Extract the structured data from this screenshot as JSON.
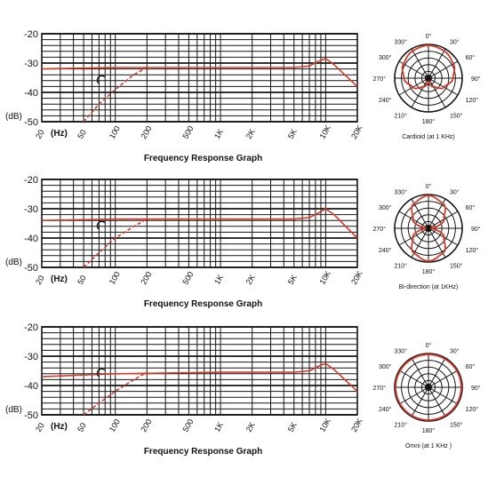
{
  "colors": {
    "grid": "#141414",
    "curve": "#d23a2a",
    "background": "#ffffff"
  },
  "chart_data": [
    {
      "type": "line",
      "panel": "frequency-response",
      "title": "Frequency Response Graph",
      "xlabel": "(Hz)",
      "ylabel": "(dB)",
      "x_scale": "log",
      "xlim": [
        20,
        20000
      ],
      "ylim": [
        -50,
        -20
      ],
      "y_ticks": [
        -20,
        -30,
        -40,
        -50
      ],
      "x_tick_labels": [
        "20",
        "50",
        "100",
        "200",
        "500",
        "1K",
        "2K",
        "5K",
        "10K",
        "20K"
      ],
      "x_tick_values": [
        20,
        50,
        100,
        200,
        500,
        1000,
        2000,
        5000,
        10000,
        20000
      ],
      "series": [
        {
          "style": "solid",
          "x": [
            20,
            100,
            1000,
            5000,
            7000,
            9000,
            10000,
            12000,
            20000
          ],
          "y": [
            -32,
            -31.5,
            -31.5,
            -31.5,
            -31,
            -29,
            -28.5,
            -30.5,
            -38
          ]
        },
        {
          "style": "dashed",
          "x": [
            50,
            70,
            100,
            150,
            200
          ],
          "y": [
            -50,
            -44,
            -39,
            -34,
            -31.5
          ]
        }
      ]
    },
    {
      "type": "pie",
      "panel": "polar-pattern",
      "pattern": "cardioid",
      "caption": "Cardioid (at 1 KHz)",
      "angle_labels": [
        "0°",
        "30°",
        "60°",
        "90°",
        "120°",
        "150°",
        "180°",
        "210°",
        "240°",
        "270°",
        "300°",
        "330°"
      ],
      "angles_deg": [
        0,
        30,
        60,
        90,
        120,
        150,
        180,
        210,
        240,
        270,
        300,
        330
      ],
      "radius_fraction": [
        1.0,
        0.96,
        0.88,
        0.75,
        0.55,
        0.3,
        0.1,
        0.3,
        0.55,
        0.75,
        0.88,
        0.96
      ]
    },
    {
      "type": "line",
      "panel": "frequency-response",
      "title": "Frequency Response Graph",
      "xlabel": "(Hz)",
      "ylabel": "(dB)",
      "x_scale": "log",
      "xlim": [
        20,
        20000
      ],
      "ylim": [
        -50,
        -20
      ],
      "y_ticks": [
        -20,
        -30,
        -40,
        -50
      ],
      "x_tick_labels": [
        "20",
        "50",
        "100",
        "200",
        "500",
        "1K",
        "2K",
        "5K",
        "10K",
        "20K"
      ],
      "x_tick_values": [
        20,
        50,
        100,
        200,
        500,
        1000,
        2000,
        5000,
        10000,
        20000
      ],
      "series": [
        {
          "style": "solid",
          "x": [
            20,
            100,
            1000,
            5000,
            7000,
            9000,
            10000,
            12000,
            20000
          ],
          "y": [
            -34,
            -33.5,
            -33.5,
            -33.5,
            -33,
            -31,
            -30,
            -32,
            -40
          ]
        },
        {
          "style": "dashed",
          "x": [
            50,
            70,
            100,
            150,
            200
          ],
          "y": [
            -50,
            -45,
            -40,
            -36,
            -33.5
          ]
        }
      ]
    },
    {
      "type": "pie",
      "panel": "polar-pattern",
      "pattern": "bidirectional",
      "caption": "Bi-direction (at 1KHz)",
      "angle_labels": [
        "0°",
        "30°",
        "60°",
        "90°",
        "120°",
        "150°",
        "180°",
        "210°",
        "240°",
        "270°",
        "300°",
        "330°"
      ],
      "angles_deg": [
        0,
        30,
        60,
        90,
        120,
        150,
        180,
        210,
        240,
        270,
        300,
        330
      ],
      "radius_fraction": [
        1.0,
        0.88,
        0.55,
        0.08,
        0.55,
        0.88,
        1.0,
        0.88,
        0.55,
        0.08,
        0.55,
        0.88
      ]
    },
    {
      "type": "line",
      "panel": "frequency-response",
      "title": "Frequency Response Graph",
      "xlabel": "(Hz)",
      "ylabel": "(dB)",
      "x_scale": "log",
      "xlim": [
        20,
        20000
      ],
      "ylim": [
        -50,
        -20
      ],
      "y_ticks": [
        -20,
        -30,
        -40,
        -50
      ],
      "x_tick_labels": [
        "20",
        "50",
        "100",
        "200",
        "500",
        "1K",
        "2K",
        "5K",
        "10K",
        "20K"
      ],
      "x_tick_values": [
        20,
        50,
        100,
        200,
        500,
        1000,
        2000,
        5000,
        10000,
        20000
      ],
      "series": [
        {
          "style": "solid",
          "x": [
            20,
            100,
            1000,
            5000,
            7000,
            9000,
            10000,
            12000,
            20000
          ],
          "y": [
            -37,
            -36,
            -35.5,
            -35.5,
            -35,
            -33,
            -32.5,
            -34.5,
            -42
          ]
        },
        {
          "style": "dashed",
          "x": [
            50,
            70,
            100,
            150,
            200
          ],
          "y": [
            -50,
            -46,
            -42,
            -38,
            -35.5
          ]
        }
      ]
    },
    {
      "type": "pie",
      "panel": "polar-pattern",
      "pattern": "omni",
      "caption": "Omni   (at 1 KHz  )",
      "angle_labels": [
        "0°",
        "30°",
        "60°",
        "90°",
        "120°",
        "150°",
        "180°",
        "210°",
        "240°",
        "270°",
        "300°",
        "330°"
      ],
      "angles_deg": [
        0,
        30,
        60,
        90,
        120,
        150,
        180,
        210,
        240,
        270,
        300,
        330
      ],
      "radius_fraction": [
        1.0,
        1.0,
        1.0,
        1.0,
        1.0,
        1.0,
        1.0,
        1.0,
        1.0,
        1.0,
        1.0,
        1.0
      ]
    }
  ]
}
